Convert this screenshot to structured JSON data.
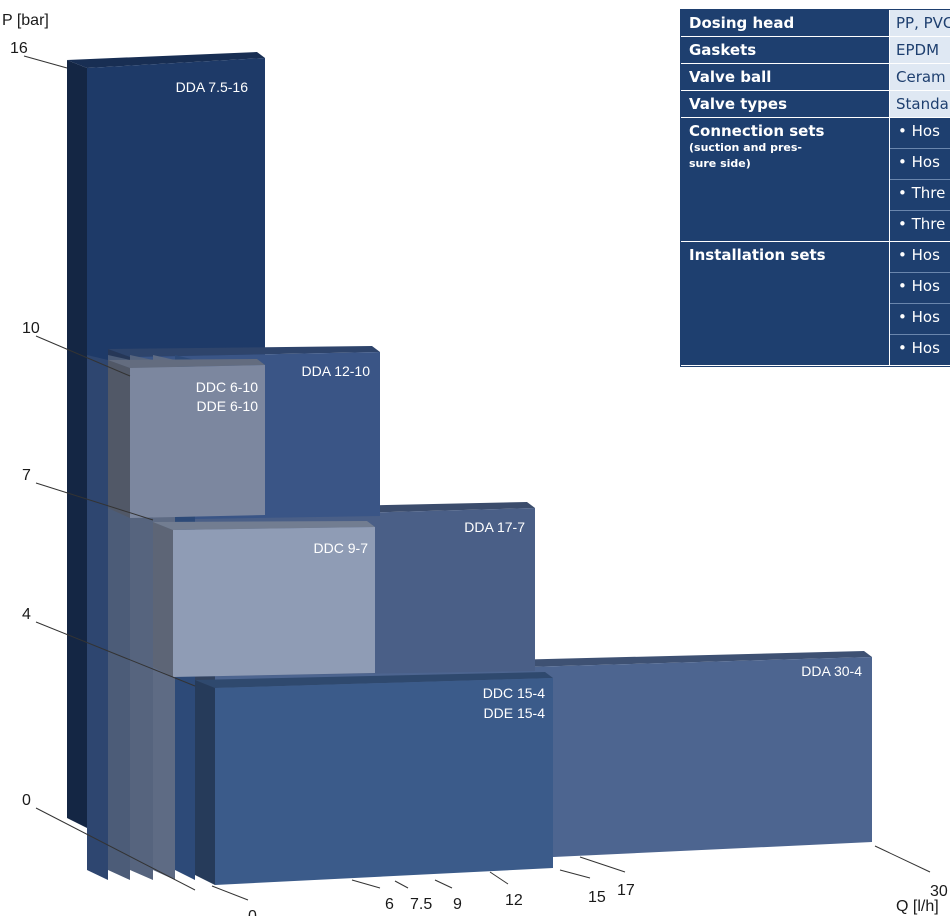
{
  "chart_data": {
    "type": "bar",
    "xlabel": "Q [l/h]",
    "ylabel": "P [bar]",
    "x_ticks": [
      "0",
      "6",
      "7.5",
      "9",
      "12",
      "15",
      "17",
      "30"
    ],
    "y_ticks": [
      "0",
      "4",
      "7",
      "10",
      "16"
    ],
    "xlim": [
      0,
      30
    ],
    "ylim": [
      0,
      16
    ],
    "series": [
      {
        "name": "DDA 30-4",
        "labels": [
          "DDA 30-4"
        ],
        "x": 30,
        "y": 4,
        "color": "#4d6590"
      },
      {
        "name": "DDC 15-4 / DDE 15-4",
        "labels": [
          "DDC 15-4",
          "DDE 15-4"
        ],
        "x": 15,
        "y": 4,
        "color": "#3b5b8a"
      },
      {
        "name": "DDA 17-7",
        "labels": [
          "DDA 17-7"
        ],
        "x": 17,
        "y": 7,
        "color": "#4a5f87"
      },
      {
        "name": "DDC 9-7",
        "labels": [
          "DDC 9-7"
        ],
        "x": 9,
        "y": 7,
        "color": "#8f9cb5"
      },
      {
        "name": "DDA 12-10",
        "labels": [
          "DDA 12-10"
        ],
        "x": 12,
        "y": 10,
        "color": "#3a5586"
      },
      {
        "name": "DDC 6-10 / DDE 6-10",
        "labels": [
          "DDC 6-10",
          "DDE 6-10"
        ],
        "x": 6,
        "y": 10,
        "color": "#7c879f"
      },
      {
        "name": "DDA 7.5-16",
        "labels": [
          "DDA 7.5-16"
        ],
        "x": 7.5,
        "y": 16,
        "color": "#1e3a68"
      }
    ]
  },
  "spec_table": {
    "dosing_head": {
      "label": "Dosing head",
      "value": "PP, PVC"
    },
    "gaskets": {
      "label": "Gaskets",
      "value": "EPDM"
    },
    "valve_ball": {
      "label": "Valve ball",
      "value": "Ceram"
    },
    "valve_types": {
      "label": "Valve types",
      "value": "Standa"
    },
    "connection_sets": {
      "label": "Connection sets",
      "sublabel_1": "(suction and pres-",
      "sublabel_2": "sure side)",
      "items": [
        "• Hos",
        "• Hos",
        "• Thre",
        "• Thre"
      ]
    },
    "installation_sets": {
      "label": "Installation sets",
      "items": [
        "• Hos",
        "• Hos",
        "• Hos",
        "• Hos"
      ]
    }
  }
}
